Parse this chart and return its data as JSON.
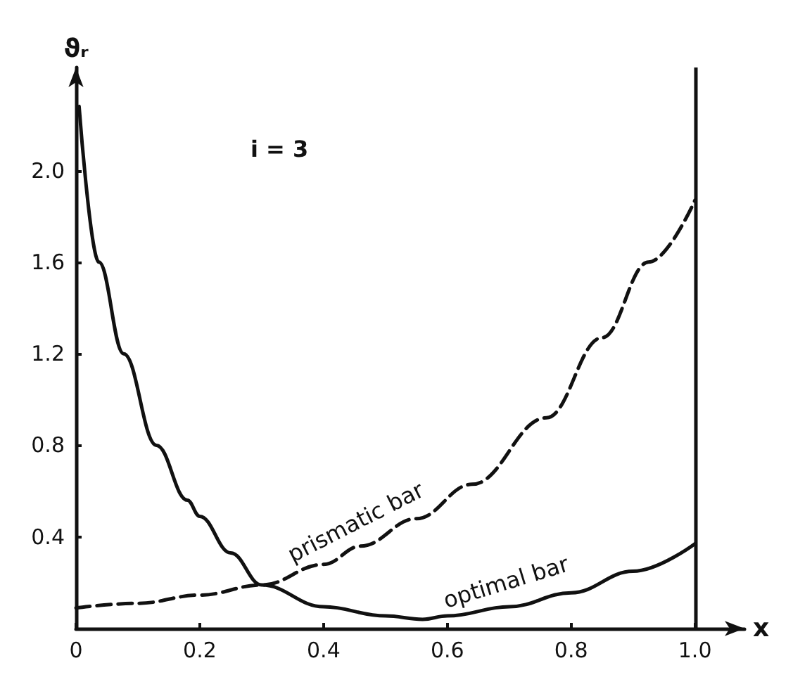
{
  "chart_data": {
    "type": "line",
    "xlabel": "x",
    "ylabel": "ϑᵣ",
    "annotations": [
      "i = 3"
    ],
    "series": [
      {
        "name": "prismatic bar",
        "color": "#111111",
        "line_style": "dashed",
        "x": [
          0,
          0.1,
          0.2,
          0.3,
          0.4,
          0.46,
          0.55,
          0.64,
          0.76,
          0.85,
          0.925,
          1.0
        ],
        "values": [
          0.09,
          0.11,
          0.146,
          0.19,
          0.28,
          0.36,
          0.48,
          0.63,
          0.92,
          1.27,
          1.6,
          1.87
        ]
      },
      {
        "name": "optimal bar",
        "color": "#111111",
        "line_style": "solid",
        "x": [
          0.005,
          0.037,
          0.077,
          0.13,
          0.18,
          0.2,
          0.25,
          0.3,
          0.4,
          0.5,
          0.56,
          0.6,
          0.7,
          0.8,
          0.9,
          1.0
        ],
        "values": [
          2.28,
          1.6,
          1.2,
          0.8,
          0.56,
          0.49,
          0.33,
          0.19,
          0.095,
          0.055,
          0.04,
          0.055,
          0.095,
          0.156,
          0.25,
          0.37
        ]
      }
    ],
    "xlim": [
      0,
      1.08
    ],
    "xticks": [
      0,
      0.2,
      0.4,
      0.6,
      0.8,
      {
        "value": 1,
        "label": "1.0"
      }
    ],
    "ylim": [
      0,
      2.45
    ],
    "yticks": [
      0.4,
      0.8,
      1.2,
      1.6,
      {
        "value": 2,
        "label": "2.0"
      }
    ],
    "ref_lines": [
      {
        "axis": "x",
        "value": 1,
        "color": "#111111"
      }
    ],
    "grid": false,
    "legend": false,
    "marker": "none"
  }
}
